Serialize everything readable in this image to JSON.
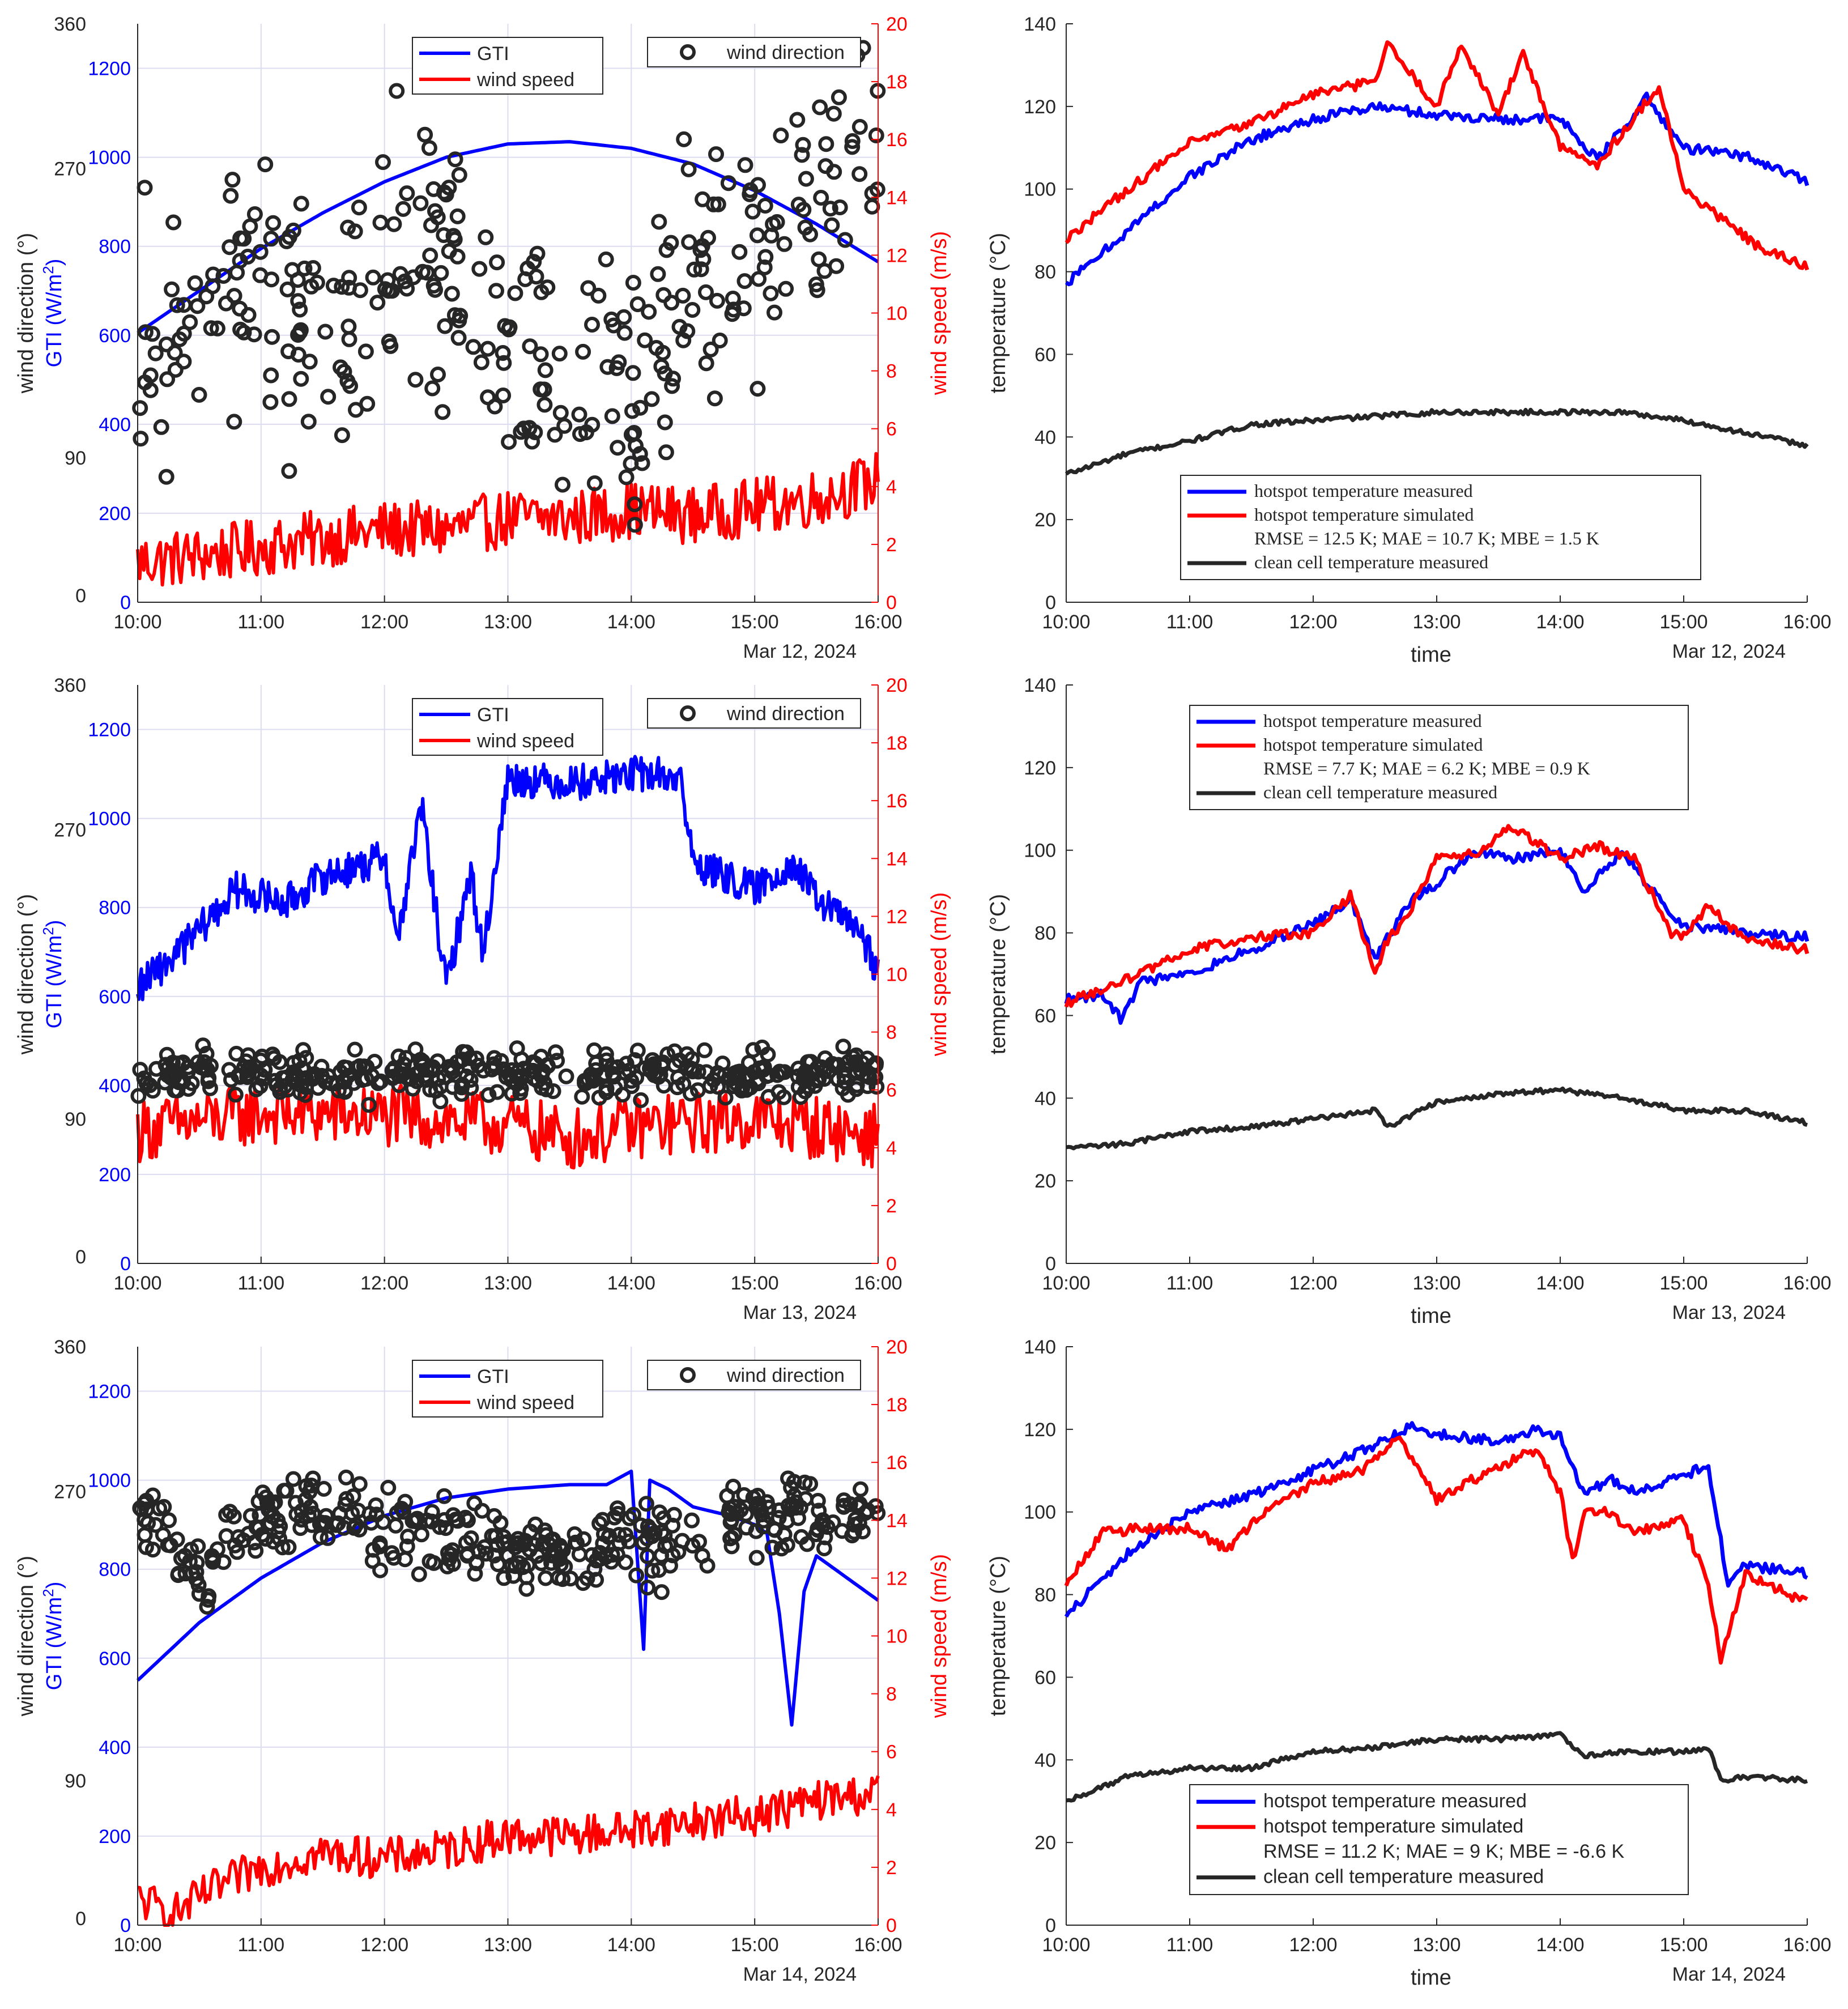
{
  "colors": {
    "gti": "#0000ff",
    "wind_speed": "#ff0000",
    "wind_dir": "#262626",
    "grid": "#dcdcf0",
    "axis": "#262626",
    "hot_meas": "#0000ff",
    "hot_sim": "#ff0000",
    "clean": "#262626"
  },
  "chart_data": [
    {
      "id": "left-1",
      "type": "line",
      "date_label": "Mar 12, 2024",
      "x_ticks": [
        "10:00",
        "11:00",
        "12:00",
        "13:00",
        "14:00",
        "15:00",
        "16:00"
      ],
      "xlim": [
        10,
        16
      ],
      "ylabel_dir": "wind direction (°)",
      "ylabel_gti": "GTI (W/m",
      "ylabel_gti_sup": "2",
      "ylabel_gti_end": ")",
      "ylabel_right": "wind speed (m/s)",
      "y_gti_ticks": [
        "0",
        "200",
        "400",
        "600",
        "800",
        "1000",
        "1200"
      ],
      "y_dir_ticks": [
        "0",
        "90",
        "270",
        "360"
      ],
      "y_right_ticks": [
        "0",
        "2",
        "4",
        "6",
        "8",
        "10",
        "12",
        "14",
        "16",
        "18",
        "20"
      ],
      "ylim_gti": [
        0,
        1300
      ],
      "ylim_right": [
        0,
        20
      ],
      "legend1": [
        "GTI",
        "wind speed"
      ],
      "legend2": [
        "wind direction"
      ],
      "gti": {
        "x": [
          10.0,
          10.5,
          11.0,
          11.5,
          12.0,
          12.5,
          13.0,
          13.5,
          14.0,
          14.5,
          15.0,
          15.5,
          16.0
        ],
        "y": [
          605,
          700,
          795,
          875,
          945,
          1000,
          1030,
          1035,
          1020,
          985,
          925,
          850,
          765
        ]
      },
      "gti_noise": 0,
      "wind_speed": {
        "x": [
          10.0,
          10.5,
          11.0,
          11.5,
          12.0,
          12.5,
          13.0,
          13.5,
          14.0,
          14.5,
          15.0,
          15.5,
          16.0
        ],
        "y": [
          1.4,
          1.6,
          1.9,
          2.2,
          2.5,
          2.5,
          2.9,
          2.9,
          3.2,
          3.0,
          3.3,
          3.6,
          4.2
        ],
        "noise": 1.0
      },
      "wind_dir": {
        "mode": "spread",
        "x": [
          10.0,
          10.5,
          11.0,
          11.5,
          12.0,
          12.5,
          13.0,
          13.5,
          14.0,
          14.5,
          15.0,
          15.5,
          16.0
        ],
        "center": [
          135,
          190,
          210,
          160,
          210,
          215,
          170,
          150,
          130,
          210,
          230,
          250,
          270
        ],
        "spread": 50
      }
    },
    {
      "id": "left-2",
      "type": "line",
      "date_label": "Mar 13, 2024",
      "x_ticks": [
        "10:00",
        "11:00",
        "12:00",
        "13:00",
        "14:00",
        "15:00",
        "16:00"
      ],
      "xlim": [
        10,
        16
      ],
      "ylabel_dir": "wind direction (°)",
      "ylabel_gti": "GTI (W/m",
      "ylabel_gti_sup": "2",
      "ylabel_gti_end": ")",
      "ylabel_right": "wind speed (m/s)",
      "y_gti_ticks": [
        "0",
        "200",
        "400",
        "600",
        "800",
        "1000",
        "1200"
      ],
      "y_dir_ticks": [
        "0",
        "90",
        "270",
        "360"
      ],
      "y_right_ticks": [
        "0",
        "2",
        "4",
        "6",
        "8",
        "10",
        "12",
        "14",
        "16",
        "18",
        "20"
      ],
      "ylim_gti": [
        0,
        1300
      ],
      "ylim_right": [
        0,
        20
      ],
      "legend1": [
        "GTI",
        "wind speed"
      ],
      "legend2": [
        "wind direction"
      ],
      "gti": {
        "x": [
          10.0,
          10.3,
          10.8,
          11.2,
          11.5,
          11.9,
          12.0,
          12.1,
          12.3,
          12.5,
          12.7,
          12.8,
          12.9,
          13.0,
          13.5,
          13.8,
          14.0,
          14.2,
          14.4,
          14.5,
          15.0,
          15.3,
          15.5,
          15.8,
          16.0
        ],
        "y": [
          620,
          690,
          840,
          810,
          870,
          900,
          920,
          720,
          1030,
          620,
          880,
          690,
          900,
          1090,
          1080,
          1090,
          1100,
          1100,
          1090,
          900,
          840,
          900,
          820,
          760,
          660
        ]
      },
      "gti_noise": 40,
      "wind_speed": {
        "x": [
          10.0,
          11.0,
          12.0,
          13.0,
          13.5,
          14.0,
          15.0,
          16.0
        ],
        "y": [
          4.6,
          5.2,
          5.1,
          4.8,
          4.3,
          4.7,
          5.0,
          4.4
        ],
        "noise": 1.1
      },
      "wind_dir": {
        "mode": "band",
        "x": [
          10.0,
          16.0
        ],
        "center": [
          118,
          118
        ],
        "spread": 12
      }
    },
    {
      "id": "left-3",
      "type": "line",
      "date_label": "Mar 14, 2024",
      "x_ticks": [
        "10:00",
        "11:00",
        "12:00",
        "13:00",
        "14:00",
        "15:00",
        "16:00"
      ],
      "xlim": [
        10,
        16
      ],
      "ylabel_dir": "wind direction (°)",
      "ylabel_gti": "GTI (W/m",
      "ylabel_gti_sup": "2",
      "ylabel_gti_end": ")",
      "ylabel_right": "wind speed (m/s)",
      "y_gti_ticks": [
        "0",
        "200",
        "400",
        "600",
        "800",
        "1000",
        "1200"
      ],
      "y_dir_ticks": [
        "0",
        "90",
        "270",
        "360"
      ],
      "y_right_ticks": [
        "0",
        "2",
        "4",
        "6",
        "8",
        "10",
        "12",
        "14",
        "16",
        "18",
        "20"
      ],
      "ylim_gti": [
        0,
        1300
      ],
      "ylim_right": [
        0,
        20
      ],
      "legend1": [
        "GTI",
        "wind speed"
      ],
      "legend2": [
        "wind direction"
      ],
      "gti": {
        "x": [
          10.0,
          10.5,
          11.0,
          11.5,
          12.0,
          12.5,
          13.0,
          13.5,
          13.8,
          14.0,
          14.1,
          14.15,
          14.3,
          14.5,
          14.8,
          15.0,
          15.1,
          15.2,
          15.3,
          15.4,
          15.5,
          16.0
        ],
        "y": [
          550,
          680,
          780,
          860,
          920,
          960,
          980,
          990,
          990,
          1020,
          620,
          1000,
          980,
          940,
          920,
          900,
          880,
          700,
          450,
          750,
          830,
          730
        ]
      },
      "gti_noise": 0,
      "wind_speed": {
        "x": [
          10.0,
          10.3,
          10.6,
          11.0,
          11.5,
          12.0,
          12.5,
          13.0,
          13.5,
          14.0,
          14.5,
          15.0,
          15.5,
          16.0
        ],
        "y": [
          0.9,
          0.4,
          1.2,
          2.0,
          2.5,
          2.3,
          2.6,
          3.1,
          3.1,
          3.3,
          3.6,
          3.8,
          4.3,
          4.6
        ],
        "noise": 0.7
      },
      "wind_dir": {
        "mode": "band",
        "x": [
          10.0,
          10.5,
          11.0,
          11.5,
          12.0,
          12.5,
          13.0,
          13.5,
          14.0,
          14.5,
          15.0,
          15.5,
          16.0
        ],
        "center": [
          258,
          215,
          255,
          260,
          240,
          245,
          230,
          230,
          245,
          235,
          255,
          255,
          255
        ],
        "spread": 20
      }
    },
    {
      "id": "right-1",
      "type": "line",
      "date_label": "Mar 12, 2024",
      "xlabel": "time",
      "x_ticks": [
        "10:00",
        "11:00",
        "12:00",
        "13:00",
        "14:00",
        "15:00",
        "16:00"
      ],
      "xlim": [
        10,
        16
      ],
      "ylabel": "temperature (°C)",
      "y_ticks": [
        "0",
        "20",
        "40",
        "60",
        "80",
        "100",
        "120",
        "140"
      ],
      "ylim": [
        0,
        140
      ],
      "legend": [
        "hotspot temperature measured",
        "hotspot temperature simulated",
        "RMSE = 12.5 K; MAE = 10.7 K; MBE = 1.5 K",
        "clean cell temperature measured"
      ],
      "legend_pos": "lower-center",
      "hot_meas": {
        "x": [
          10.0,
          10.5,
          11.0,
          11.5,
          12.0,
          12.5,
          13.0,
          13.5,
          14.0,
          14.3,
          14.7,
          15.0,
          15.5,
          16.0
        ],
        "y": [
          77,
          90,
          103,
          112,
          117,
          120,
          118,
          117,
          117,
          107,
          122,
          110,
          108,
          102
        ]
      },
      "hot_sim": {
        "x": [
          10.0,
          10.5,
          11.0,
          11.5,
          12.0,
          12.5,
          12.6,
          13.0,
          13.2,
          13.5,
          13.7,
          14.0,
          14.3,
          14.8,
          15.0,
          15.3,
          15.6,
          16.0
        ],
        "y": [
          88,
          100,
          111,
          116,
          123,
          126,
          135,
          120,
          135,
          118,
          133,
          110,
          106,
          125,
          100,
          93,
          86,
          81
        ]
      },
      "clean": {
        "x": [
          10.0,
          10.5,
          11.0,
          11.5,
          12.0,
          12.5,
          13.0,
          13.5,
          14.0,
          14.5,
          15.0,
          15.5,
          16.0
        ],
        "y": [
          31,
          36,
          39,
          43,
          44,
          45,
          46,
          46,
          46,
          46,
          44,
          41,
          38
        ]
      }
    },
    {
      "id": "right-2",
      "type": "line",
      "date_label": "Mar 13, 2024",
      "xlabel": "time",
      "x_ticks": [
        "10:00",
        "11:00",
        "12:00",
        "13:00",
        "14:00",
        "15:00",
        "16:00"
      ],
      "xlim": [
        10,
        16
      ],
      "ylabel": "temperature (°C)",
      "y_ticks": [
        "0",
        "20",
        "40",
        "60",
        "80",
        "100",
        "120",
        "140"
      ],
      "ylim": [
        0,
        140
      ],
      "legend": [
        "hotspot temperature measured",
        "hotspot temperature simulated",
        "RMSE = 7.7 K; MAE = 6.2 K; MBE = 0.9 K",
        "clean cell temperature measured"
      ],
      "legend_pos": "upper-center",
      "hot_meas": {
        "x": [
          10.0,
          10.3,
          10.45,
          10.6,
          11.0,
          11.5,
          12.0,
          12.3,
          12.5,
          12.6,
          12.8,
          13.0,
          13.3,
          13.6,
          14.0,
          14.2,
          14.5,
          14.8,
          15.0,
          15.5,
          16.0
        ],
        "y": [
          64,
          65,
          59,
          68,
          70,
          76,
          82,
          88,
          73,
          79,
          88,
          92,
          100,
          98,
          100,
          90,
          100,
          88,
          82,
          80,
          79
        ]
      },
      "hot_sim": {
        "x": [
          10.0,
          10.5,
          11.0,
          11.5,
          12.0,
          12.3,
          12.5,
          12.6,
          12.8,
          13.0,
          13.3,
          13.6,
          14.0,
          14.3,
          14.6,
          14.9,
          15.0,
          15.2,
          15.5,
          16.0
        ],
        "y": [
          63,
          69,
          76,
          79,
          80,
          89,
          71,
          78,
          86,
          98,
          99,
          106,
          98,
          101,
          98,
          80,
          79,
          87,
          78,
          76
        ]
      },
      "clean": {
        "x": [
          10.0,
          10.5,
          11.0,
          11.5,
          12.0,
          12.5,
          12.6,
          13.0,
          13.5,
          14.0,
          14.5,
          15.0,
          15.5,
          16.0
        ],
        "y": [
          28,
          29,
          32,
          33,
          35,
          37,
          33,
          39,
          41,
          42,
          40,
          37,
          37,
          34
        ]
      }
    },
    {
      "id": "right-3",
      "type": "line",
      "date_label": "Mar 14, 2024",
      "xlabel": "time",
      "x_ticks": [
        "10:00",
        "11:00",
        "12:00",
        "13:00",
        "14:00",
        "15:00",
        "16:00"
      ],
      "xlim": [
        10,
        16
      ],
      "ylabel": "temperature (°C)",
      "y_ticks": [
        "0",
        "20",
        "40",
        "60",
        "80",
        "100",
        "120",
        "140"
      ],
      "ylim": [
        0,
        140
      ],
      "legend": [
        "hotspot temperature measured",
        "hotspot temperature simulated",
        "RMSE = 11.2 K;   MAE = 9 K;   MBE = -6.6 K",
        "clean cell temperature measured"
      ],
      "legend_pos": "lower-center",
      "hot_meas": {
        "x": [
          10.0,
          10.5,
          11.0,
          11.5,
          12.0,
          12.5,
          12.8,
          13.0,
          13.5,
          13.8,
          14.0,
          14.2,
          14.4,
          14.6,
          15.0,
          15.2,
          15.3,
          15.35,
          15.5,
          16.0
        ],
        "y": [
          75,
          90,
          100,
          104,
          110,
          116,
          121,
          119,
          117,
          120,
          118,
          104,
          108,
          105,
          109,
          111,
          93,
          83,
          87,
          85
        ]
      },
      "hot_sim": {
        "x": [
          10.0,
          10.3,
          10.6,
          11.0,
          11.3,
          11.6,
          12.0,
          12.4,
          12.7,
          13.0,
          13.3,
          13.8,
          14.0,
          14.1,
          14.2,
          14.4,
          14.6,
          15.0,
          15.2,
          15.3,
          15.5,
          16.0
        ],
        "y": [
          83,
          95,
          96,
          96,
          91,
          100,
          107,
          110,
          118,
          103,
          108,
          115,
          105,
          88,
          101,
          100,
          95,
          98,
          82,
          64,
          85,
          78
        ]
      },
      "clean": {
        "x": [
          10.0,
          10.5,
          11.0,
          11.5,
          12.0,
          12.5,
          13.0,
          13.5,
          14.0,
          14.2,
          14.5,
          15.0,
          15.2,
          15.3,
          15.5,
          16.0
        ],
        "y": [
          30,
          36,
          38,
          38,
          42,
          43,
          45,
          45,
          46,
          41,
          42,
          42,
          43,
          35,
          36,
          35
        ]
      }
    }
  ]
}
